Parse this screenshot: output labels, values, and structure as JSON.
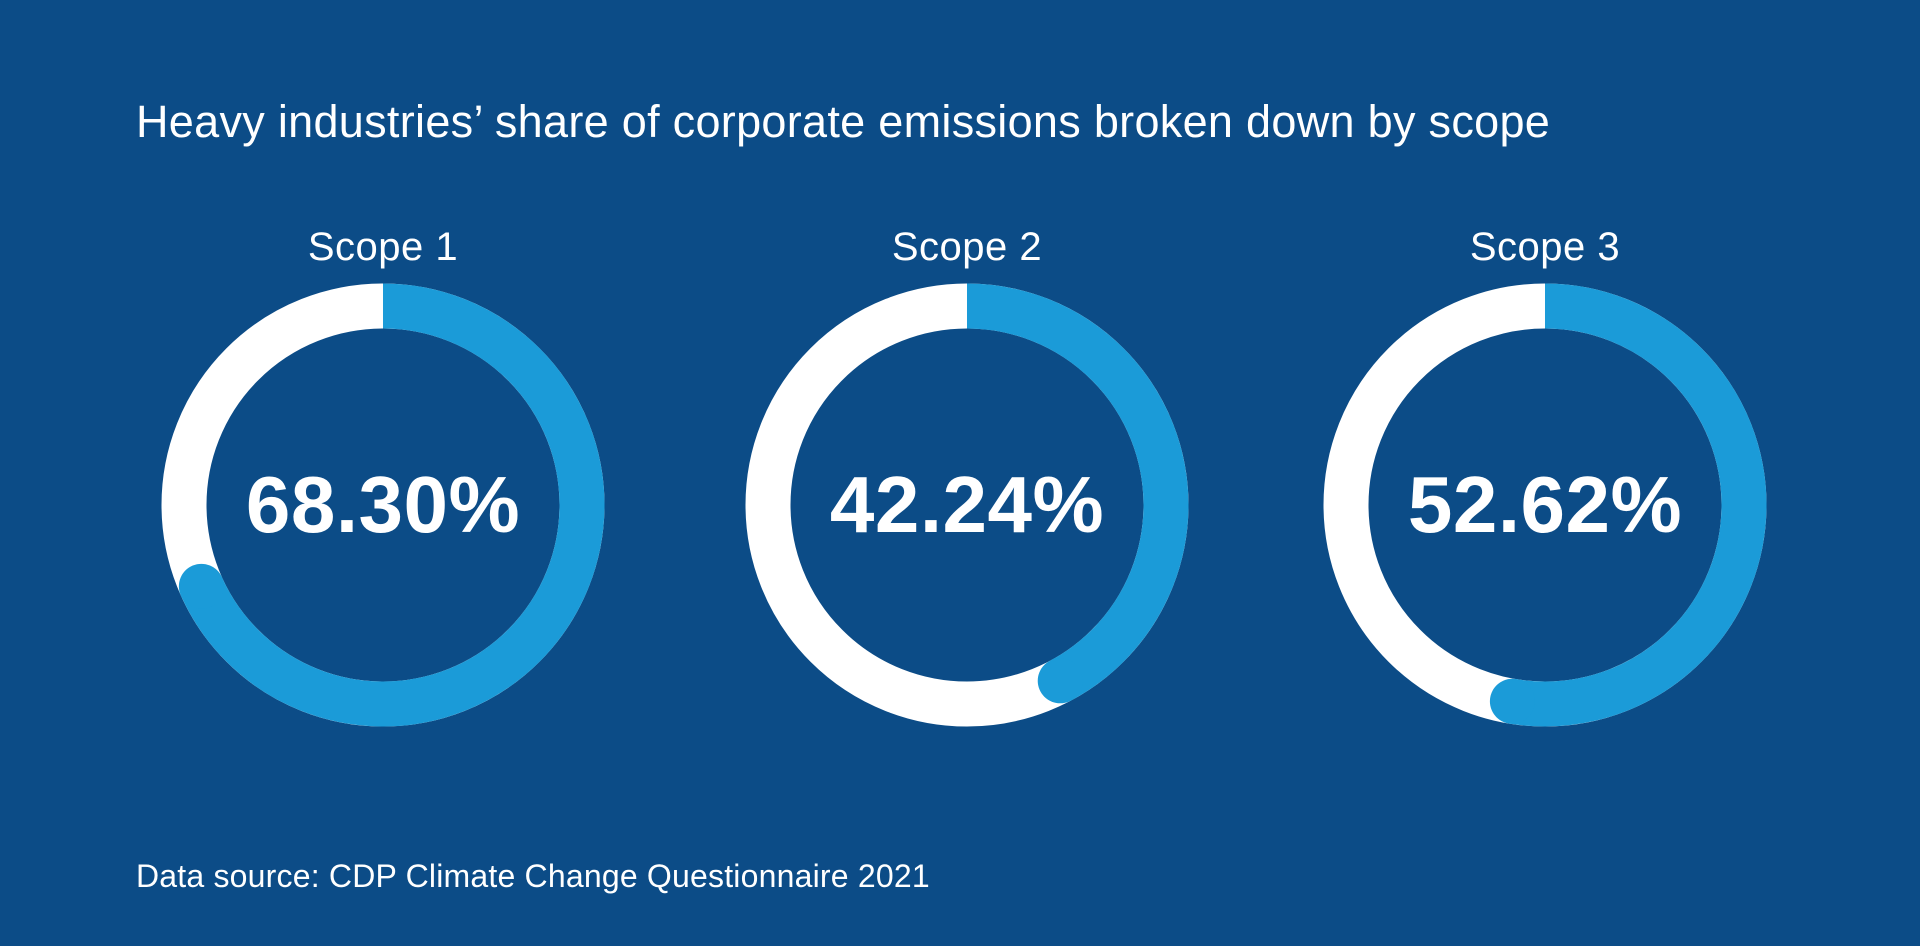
{
  "page": {
    "background_color": "#0C4C87",
    "text_color": "#FFFFFF"
  },
  "chart_data": {
    "type": "pie",
    "variant": "donut-small-multiples",
    "title": "Heavy industries’ share of corporate emissions broken down by scope",
    "legend_position": "none",
    "grid": false,
    "ring_color": "#1B9BD8",
    "track_color": "#FFFFFF",
    "arc_start": "top",
    "arc_direction": "clockwise",
    "charts": [
      {
        "label": "Scope 1",
        "value": 68.3,
        "display": "68.30%",
        "remainder": 31.7
      },
      {
        "label": "Scope 2",
        "value": 42.24,
        "display": "42.24%",
        "remainder": 57.76
      },
      {
        "label": "Scope 3",
        "value": 52.62,
        "display": "52.62%",
        "remainder": 47.38
      }
    ],
    "source": "Data source: CDP Climate Change Questionnaire 2021"
  }
}
